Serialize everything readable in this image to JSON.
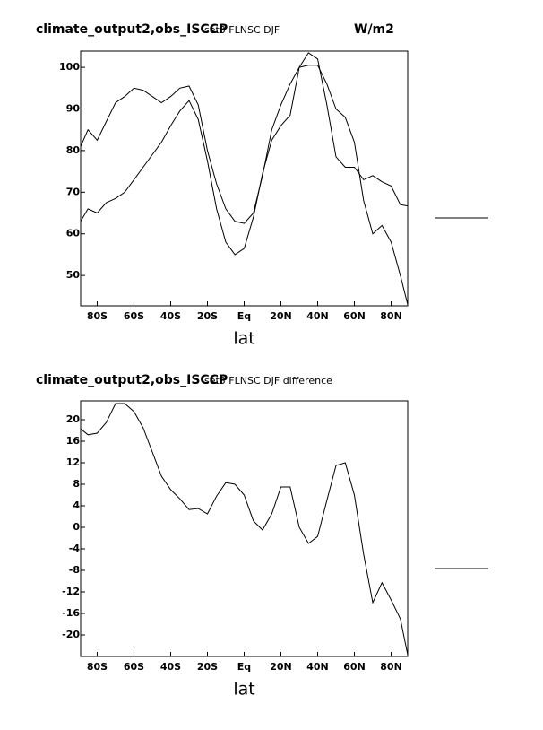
{
  "chart_data": [
    {
      "type": "line",
      "title": "climate_output2,obs_ISCCP",
      "subtitle": "set3 FLNSC DJF",
      "units": "W/m2",
      "x_label": "lat",
      "x": [
        -89,
        -85,
        -80,
        -75,
        -70,
        -65,
        -60,
        -55,
        -50,
        -45,
        -40,
        -35,
        -30,
        -25,
        -20,
        -15,
        -10,
        -5,
        0,
        5,
        10,
        15,
        20,
        25,
        30,
        35,
        40,
        45,
        50,
        55,
        60,
        65,
        70,
        75,
        80,
        85,
        89
      ],
      "series": [
        {
          "color": "#000000",
          "values": [
            81,
            85,
            82.5,
            87,
            91.5,
            93,
            95,
            94.5,
            93,
            91.5,
            93,
            95,
            95.5,
            91,
            80,
            72,
            66,
            63,
            62.5,
            65,
            74,
            85,
            91,
            96,
            100,
            100.5,
            100.5,
            96,
            90,
            88,
            82,
            68,
            60,
            62,
            58,
            50,
            43
          ]
        },
        {
          "color": "#000000",
          "values": [
            63,
            66,
            65,
            67.5,
            68.5,
            70,
            73,
            76,
            79,
            82,
            86,
            89.5,
            92,
            87.5,
            77.5,
            66,
            58,
            55,
            56.5,
            64,
            74.5,
            82.5,
            86,
            88.5,
            100,
            103.5,
            102,
            91,
            78.5,
            76,
            76,
            73,
            74,
            72.5,
            71.5,
            67,
            66.7
          ]
        }
      ],
      "xlim": [
        -89,
        89
      ],
      "ylim": [
        42.7,
        103.9
      ],
      "xticks": [
        {
          "value": -80,
          "label": "80S"
        },
        {
          "value": -60,
          "label": "60S"
        },
        {
          "value": -40,
          "label": "40S"
        },
        {
          "value": -20,
          "label": "20S"
        },
        {
          "value": 0,
          "label": "Eq"
        },
        {
          "value": 20,
          "label": "20N"
        },
        {
          "value": 40,
          "label": "40N"
        },
        {
          "value": 60,
          "label": "60N"
        },
        {
          "value": 80,
          "label": "80N"
        }
      ],
      "yticks": [
        50,
        60,
        70,
        80,
        90,
        100
      ]
    },
    {
      "type": "line",
      "title": "climate_output2,obs_ISCCP",
      "subtitle": "set3 FLNSC DJF difference",
      "x_label": "lat",
      "x": [
        -89,
        -85,
        -80,
        -75,
        -70,
        -65,
        -60,
        -55,
        -50,
        -45,
        -40,
        -35,
        -30,
        -25,
        -20,
        -15,
        -10,
        -5,
        0,
        5,
        10,
        15,
        20,
        25,
        30,
        35,
        40,
        45,
        50,
        55,
        60,
        65,
        70,
        75,
        80,
        85,
        89
      ],
      "series": [
        {
          "color": "#000000",
          "values": [
            18.3,
            17.2,
            17.5,
            19.5,
            23,
            23,
            21.5,
            18.5,
            14,
            9.5,
            7,
            5.3,
            3.3,
            3.5,
            2.5,
            5.8,
            8.3,
            8,
            6,
            1.2,
            -0.5,
            2.5,
            7.5,
            7.5,
            0,
            -3,
            -1.7,
            5,
            11.5,
            12,
            6,
            -5,
            -14,
            -10.3,
            -13.5,
            -17,
            -23.7
          ]
        }
      ],
      "xlim": [
        -89,
        89
      ],
      "ylim": [
        -24,
        23.5
      ],
      "xticks": [
        {
          "value": -80,
          "label": "80S"
        },
        {
          "value": -60,
          "label": "60S"
        },
        {
          "value": -40,
          "label": "40S"
        },
        {
          "value": -20,
          "label": "20S"
        },
        {
          "value": 0,
          "label": "Eq"
        },
        {
          "value": 20,
          "label": "20N"
        },
        {
          "value": 40,
          "label": "40N"
        },
        {
          "value": 60,
          "label": "60N"
        },
        {
          "value": 80,
          "label": "80N"
        }
      ],
      "yticks": [
        -20,
        -16,
        -12,
        -8,
        -4,
        0,
        4,
        8,
        12,
        16,
        20
      ]
    }
  ]
}
